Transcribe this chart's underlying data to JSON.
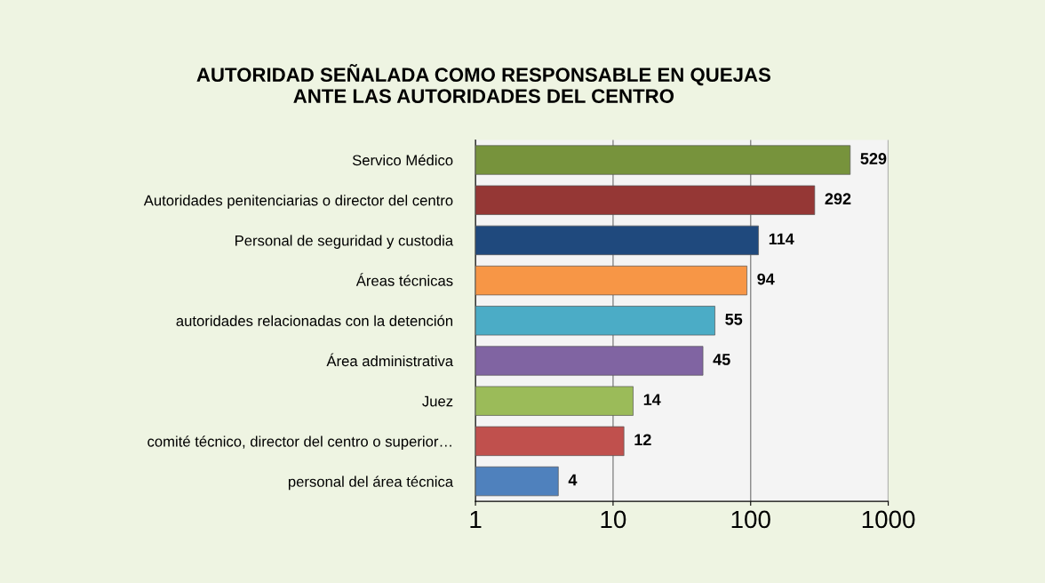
{
  "chart_data": {
    "type": "bar",
    "orientation": "horizontal",
    "title": "AUTORIDAD SEÑALADA COMO RESPONSABLE EN QUEJAS\nANTE LAS AUTORIDADES DEL CENTRO",
    "categories": [
      "Servico Médico",
      "Autoridades penitenciarias o director del centro",
      "Personal de seguridad y custodia",
      "Áreas técnicas",
      "autoridades relacionadas con la detención",
      "Área administrativa",
      "Juez",
      "comité técnico, director del centro o superior…",
      "personal del área técnica"
    ],
    "values": [
      529,
      292,
      114,
      94,
      55,
      45,
      14,
      12,
      4
    ],
    "colors": [
      "#77933c",
      "#953735",
      "#1f497d",
      "#f79646",
      "#4bacc6",
      "#8064a2",
      "#9bbb59",
      "#c0504d",
      "#4f81bd"
    ],
    "log": "x",
    "xlim": [
      1,
      1000
    ],
    "xticks": [
      1,
      10,
      100,
      1000
    ],
    "grid": "x",
    "data_labels": true
  }
}
